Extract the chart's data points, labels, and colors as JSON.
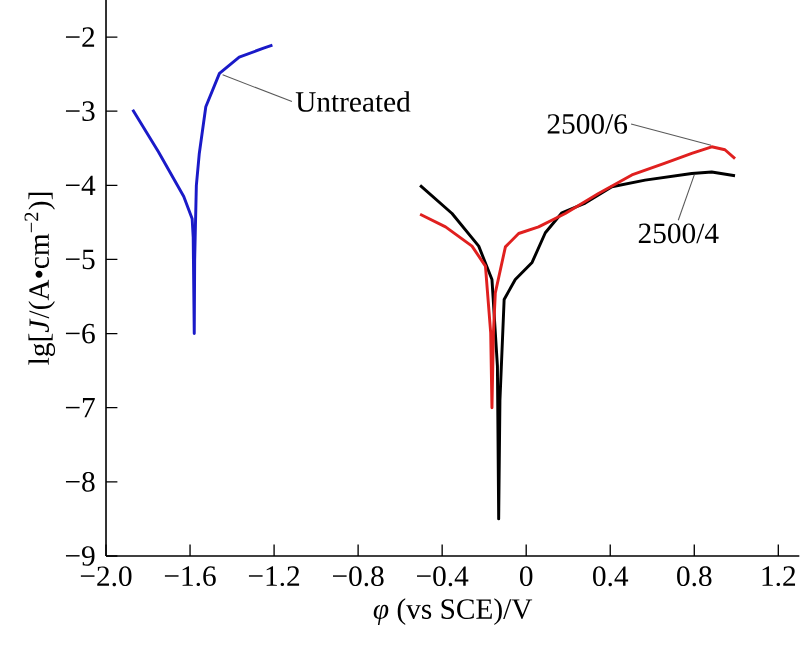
{
  "chart_data": {
    "type": "line",
    "xlabel": "*φ* (vs SCE)/V",
    "ylabel": "lg[*J*/(A•cm$^{−2}$)]",
    "xlim": [
      -2.0,
      1.3
    ],
    "ylim": [
      -9,
      -1.5
    ],
    "xticks": [
      {
        "value": -2.0,
        "label": "−2.0"
      },
      {
        "value": -1.6,
        "label": "−1.6"
      },
      {
        "value": -1.2,
        "label": "−1.2"
      },
      {
        "value": -0.8,
        "label": "−0.8"
      },
      {
        "value": -0.4,
        "label": "−0.4"
      },
      {
        "value": 0,
        "label": "0"
      },
      {
        "value": 0.4,
        "label": "0.4"
      },
      {
        "value": 0.8,
        "label": "0.8"
      },
      {
        "value": 1.2,
        "label": "1.2"
      }
    ],
    "yticks": [
      {
        "value": -9,
        "label": "−9"
      },
      {
        "value": -8,
        "label": "−8"
      },
      {
        "value": -7,
        "label": "−7"
      },
      {
        "value": -6,
        "label": "−6"
      },
      {
        "value": -5,
        "label": "−5"
      },
      {
        "value": -4,
        "label": "−4"
      },
      {
        "value": -3,
        "label": "−3"
      },
      {
        "value": -2,
        "label": "−2"
      }
    ],
    "marker": "none",
    "line_style": "solid",
    "series": [
      {
        "color": "#1a1ac8",
        "x": [
          -1.873,
          -1.75,
          -1.63,
          -1.59,
          -1.585,
          -1.58,
          -1.578,
          -1.57,
          -1.556,
          -1.525,
          -1.46,
          -1.366,
          -1.25,
          -1.208
        ],
        "values": [
          -2.98,
          -3.55,
          -4.15,
          -4.45,
          -4.7,
          -6.0,
          -5.0,
          -4.0,
          -3.57,
          -2.94,
          -2.49,
          -2.27,
          -2.15,
          -2.11
        ]
      },
      {
        "color": "#000000",
        "x": [
          -0.505,
          -0.353,
          -0.226,
          -0.163,
          -0.137,
          -0.131,
          -0.125,
          -0.105,
          -0.052,
          0.028,
          0.091,
          0.17,
          0.281,
          0.408,
          0.566,
          0.788,
          0.883,
          0.994
        ],
        "values": [
          -4.0,
          -4.38,
          -4.82,
          -5.27,
          -6.44,
          -8.5,
          -6.9,
          -5.54,
          -5.27,
          -5.04,
          -4.64,
          -4.37,
          -4.24,
          -4.02,
          -3.93,
          -3.84,
          -3.82,
          -3.87
        ]
      },
      {
        "color": "#e0201f",
        "x": [
          -0.505,
          -0.384,
          -0.258,
          -0.194,
          -0.169,
          -0.163,
          -0.156,
          -0.147,
          -0.099,
          -0.036,
          0.059,
          0.186,
          0.344,
          0.503,
          0.661,
          0.788,
          0.883,
          0.946,
          0.994
        ],
        "values": [
          -4.39,
          -4.56,
          -4.82,
          -5.09,
          -5.99,
          -7.0,
          -5.99,
          -5.45,
          -4.83,
          -4.65,
          -4.56,
          -4.38,
          -4.11,
          -3.86,
          -3.7,
          -3.57,
          -3.48,
          -3.52,
          -3.64
        ]
      }
    ],
    "annotations": [
      {
        "text": "Untreated",
        "x": -1.445,
        "y": -2.51
      },
      {
        "text": "2500/6",
        "x": 0.88,
        "y": -3.46
      },
      {
        "text": "2500/4",
        "x": 0.8,
        "y": -3.86
      }
    ]
  }
}
